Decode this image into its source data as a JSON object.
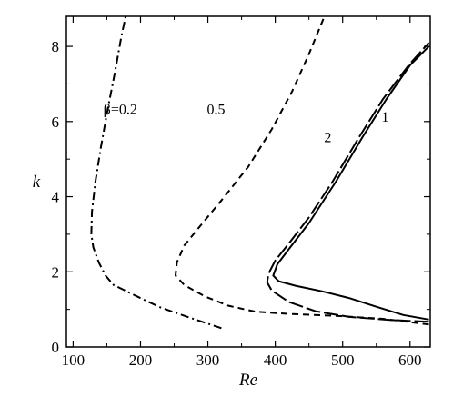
{
  "chart_data": {
    "type": "line",
    "xlabel": "Re",
    "ylabel": "k",
    "xlim": [
      90,
      630
    ],
    "ylim": [
      0,
      8.8
    ],
    "xticks": [
      100,
      200,
      300,
      400,
      500,
      600
    ],
    "yticks": [
      0,
      2,
      4,
      6,
      8
    ],
    "grid": false,
    "series": [
      {
        "name": "β=0.2",
        "style": "dashdot",
        "color": "#000000",
        "points": [
          [
            320,
            0.5
          ],
          [
            270,
            0.8
          ],
          [
            230,
            1.05
          ],
          [
            200,
            1.3
          ],
          [
            175,
            1.52
          ],
          [
            160,
            1.65
          ],
          [
            148,
            1.9
          ],
          [
            138,
            2.25
          ],
          [
            130,
            2.65
          ],
          [
            127,
            3.0
          ],
          [
            128,
            3.6
          ],
          [
            133,
            4.4
          ],
          [
            141,
            5.3
          ],
          [
            151,
            6.3
          ],
          [
            162,
            7.3
          ],
          [
            172,
            8.3
          ],
          [
            178,
            8.8
          ]
        ]
      },
      {
        "name": "0.5",
        "style": "dashed",
        "color": "#000000",
        "points": [
          [
            628,
            0.6
          ],
          [
            560,
            0.75
          ],
          [
            490,
            0.83
          ],
          [
            420,
            0.88
          ],
          [
            370,
            0.94
          ],
          [
            330,
            1.1
          ],
          [
            295,
            1.35
          ],
          [
            265,
            1.65
          ],
          [
            252,
            1.9
          ],
          [
            254,
            2.25
          ],
          [
            265,
            2.7
          ],
          [
            290,
            3.25
          ],
          [
            320,
            3.9
          ],
          [
            360,
            4.8
          ],
          [
            395,
            5.8
          ],
          [
            425,
            6.8
          ],
          [
            450,
            7.8
          ],
          [
            473,
            8.8
          ]
        ]
      },
      {
        "name": "1",
        "style": "solid",
        "color": "#000000",
        "points": [
          [
            628,
            0.73
          ],
          [
            590,
            0.85
          ],
          [
            550,
            1.07
          ],
          [
            510,
            1.3
          ],
          [
            470,
            1.48
          ],
          [
            430,
            1.63
          ],
          [
            405,
            1.75
          ],
          [
            397,
            1.9
          ],
          [
            403,
            2.2
          ],
          [
            420,
            2.6
          ],
          [
            450,
            3.3
          ],
          [
            490,
            4.4
          ],
          [
            530,
            5.6
          ],
          [
            565,
            6.6
          ],
          [
            600,
            7.5
          ],
          [
            628,
            8.0
          ]
        ]
      },
      {
        "name": "2",
        "style": "longdash",
        "color": "#000000",
        "points": [
          [
            628,
            0.67
          ],
          [
            570,
            0.72
          ],
          [
            510,
            0.8
          ],
          [
            460,
            0.95
          ],
          [
            420,
            1.2
          ],
          [
            395,
            1.5
          ],
          [
            388,
            1.72
          ],
          [
            390,
            1.95
          ],
          [
            400,
            2.3
          ],
          [
            420,
            2.75
          ],
          [
            450,
            3.45
          ],
          [
            485,
            4.4
          ],
          [
            525,
            5.6
          ],
          [
            560,
            6.6
          ],
          [
            598,
            7.5
          ],
          [
            628,
            8.1
          ]
        ]
      }
    ],
    "annotations": [
      {
        "text": "β=0.2",
        "x": 170,
        "y": 6.2
      },
      {
        "text": "0.5",
        "x": 312,
        "y": 6.2
      },
      {
        "text": "1",
        "x": 563,
        "y": 6.0
      },
      {
        "text": "2",
        "x": 478,
        "y": 5.45
      }
    ]
  }
}
